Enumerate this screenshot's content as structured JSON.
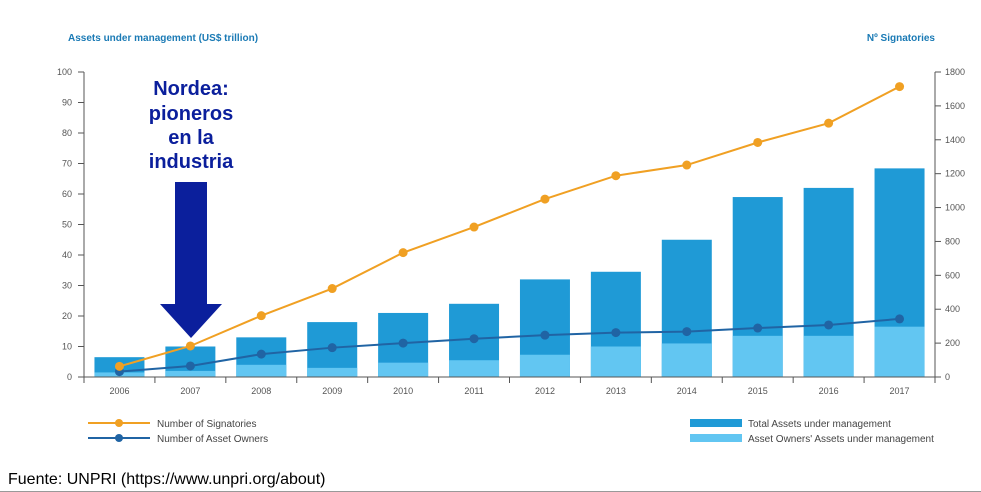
{
  "chart_data": {
    "type": "bar",
    "left_axis_title": "Assets under management (US$ trillion)",
    "right_axis_title": "Nº Signatories",
    "categories": [
      "2006",
      "2007",
      "2008",
      "2009",
      "2010",
      "2011",
      "2012",
      "2013",
      "2014",
      "2015",
      "2016",
      "2017"
    ],
    "left_ylim": [
      0,
      100
    ],
    "left_ticks": [
      "0",
      "10",
      "20",
      "30",
      "40",
      "50",
      "60",
      "70",
      "80",
      "90",
      "100"
    ],
    "right_ylim": [
      0,
      1800
    ],
    "right_ticks": [
      "0",
      "200",
      "400",
      "600",
      "800",
      "1000",
      "1200",
      "1400",
      "1600",
      "1800"
    ],
    "series": [
      {
        "name": "Total Assets under management",
        "kind": "bar",
        "axis": "left",
        "color": "#1f9ad6",
        "values": [
          6.5,
          10,
          13,
          18,
          21,
          24,
          32,
          34.5,
          45,
          59,
          62,
          68.4
        ]
      },
      {
        "name": "Asset Owners' Assets under management",
        "kind": "bar",
        "axis": "left",
        "color": "#62c6f2",
        "values": [
          1.5,
          2,
          4,
          3,
          4.7,
          5.5,
          7.3,
          10,
          11,
          13.5,
          13.5,
          16.5
        ]
      },
      {
        "name": "Number of Signatories",
        "kind": "line",
        "axis": "right",
        "color": "#f0a023",
        "values": [
          63,
          183,
          362,
          522,
          734,
          885,
          1050,
          1188,
          1251,
          1384,
          1498,
          1714
        ]
      },
      {
        "name": "Number of Asset Owners",
        "kind": "line",
        "axis": "right",
        "color": "#2064a4",
        "values": [
          32,
          65,
          135,
          173,
          200,
          226,
          247,
          262,
          268,
          289,
          307,
          343
        ]
      }
    ],
    "legend": {
      "left": [
        "Number of Signatories",
        "Number of Asset Owners"
      ],
      "right": [
        "Total Assets under management",
        "Asset Owners' Assets under management"
      ]
    },
    "annotation": {
      "lines": [
        "Nordea:",
        "pioneros",
        "en la",
        "industria"
      ],
      "category": "2007",
      "color": "#0b1f9c"
    }
  },
  "source": "Fuente: UNPRI (https://www.unpri.org/about)"
}
